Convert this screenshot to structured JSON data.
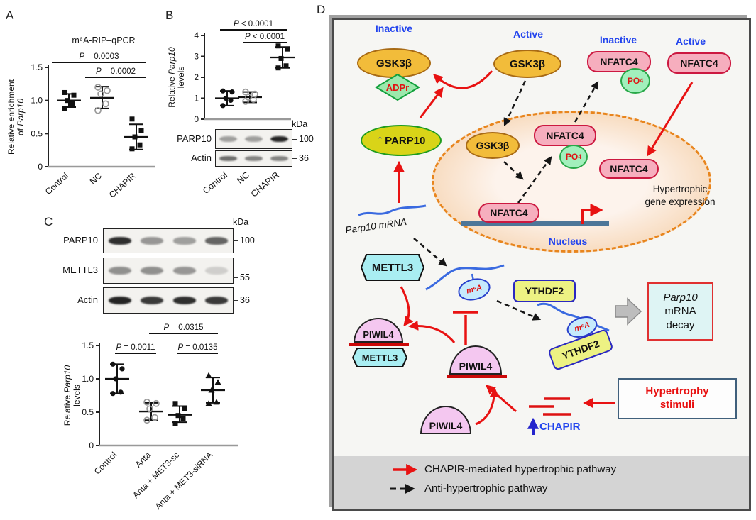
{
  "figure": {
    "panel_a": {
      "label": "A"
    },
    "panel_b": {
      "label": "B"
    },
    "panel_c": {
      "label": "C"
    },
    "panel_d": {
      "label": "D"
    }
  },
  "chart_data": [
    {
      "id": "A",
      "type": "scatter",
      "title": "m⁶A-RIP–qPCR",
      "ylabel_lines": [
        [
          {
            "t": "Relative enrichment"
          }
        ],
        [
          {
            "t": "of "
          },
          {
            "t": "Parp10",
            "i": true
          }
        ]
      ],
      "ylim": [
        0,
        1.5
      ],
      "yticks": [
        0,
        0.5,
        1.0,
        1.5
      ],
      "ytick_labels": [
        "0",
        "0.5",
        "1.0",
        "1.5"
      ],
      "groups": [
        {
          "label": "Control",
          "marker": "square",
          "values": [
            0.88,
            0.95,
            1.0,
            1.08,
            1.12
          ],
          "mean": 1.0,
          "err": [
            0.9,
            1.1
          ]
        },
        {
          "label": "NC",
          "marker": "circle-open",
          "values": [
            0.85,
            0.95,
            1.1,
            1.15,
            1.2
          ],
          "mean": 1.04,
          "err": [
            0.88,
            1.21
          ]
        },
        {
          "label": "CHAPIR",
          "marker": "square",
          "values": [
            0.27,
            0.33,
            0.45,
            0.55,
            0.72
          ],
          "mean": 0.45,
          "err": [
            0.26,
            0.64
          ]
        }
      ],
      "comparisons": [
        {
          "text": "P = 0.0003",
          "from": 0,
          "to": 2,
          "level": 0
        },
        {
          "text": "P = 0.0002",
          "from": 1,
          "to": 2,
          "level": 1
        }
      ]
    },
    {
      "id": "B",
      "type": "scatter",
      "title": "",
      "ylabel_lines": [
        [
          {
            "t": "Relative "
          },
          {
            "t": "Parp10",
            "i": true
          }
        ],
        [
          {
            "t": "levels"
          }
        ]
      ],
      "ylim": [
        0,
        4
      ],
      "yticks": [
        0,
        1,
        2,
        3,
        4
      ],
      "ytick_labels": [
        "0",
        "1",
        "2",
        "3",
        "4"
      ],
      "groups": [
        {
          "label": "Control",
          "marker": "circle",
          "values": [
            0.65,
            0.9,
            1.0,
            1.3,
            1.35
          ],
          "mean": 1.0,
          "err": [
            0.65,
            1.35
          ]
        },
        {
          "label": "NC",
          "marker": "circle-open",
          "values": [
            0.85,
            0.95,
            1.05,
            1.2,
            1.3
          ],
          "mean": 1.05,
          "err": [
            0.8,
            1.3
          ]
        },
        {
          "label": "CHAPIR",
          "marker": "square",
          "values": [
            2.45,
            2.55,
            2.9,
            3.35,
            3.5
          ],
          "mean": 2.95,
          "err": [
            2.45,
            3.45
          ]
        }
      ],
      "comparisons": [
        {
          "text": "P < 0.0001",
          "from": 0,
          "to": 2,
          "level": 0
        },
        {
          "text": "P < 0.0001",
          "from": 1,
          "to": 2,
          "level": 1
        }
      ]
    },
    {
      "id": "C",
      "type": "scatter",
      "title": "",
      "ylabel_lines": [
        [
          {
            "t": "Relative "
          },
          {
            "t": "Parp10",
            "i": true
          }
        ],
        [
          {
            "t": "levels"
          }
        ]
      ],
      "ylim": [
        0,
        1.5
      ],
      "yticks": [
        0,
        0.5,
        1.0,
        1.5
      ],
      "ytick_labels": [
        "0",
        "0.5",
        "1.0",
        "1.5"
      ],
      "groups": [
        {
          "label": "Control",
          "marker": "circle",
          "values": [
            0.78,
            0.8,
            1.0,
            1.15,
            1.22
          ],
          "mean": 1.0,
          "err": [
            0.78,
            1.22
          ]
        },
        {
          "label": "Anta",
          "marker": "circle-open",
          "values": [
            0.38,
            0.42,
            0.55,
            0.63,
            0.65
          ],
          "mean": 0.51,
          "err": [
            0.38,
            0.64
          ]
        },
        {
          "label": "Anta + MET3-sc",
          "marker": "square",
          "values": [
            0.33,
            0.4,
            0.45,
            0.55,
            0.63
          ],
          "mean": 0.46,
          "err": [
            0.35,
            0.59
          ]
        },
        {
          "label": "Anta + MET3-siRNA",
          "marker": "triangle",
          "values": [
            0.63,
            0.65,
            0.83,
            0.95,
            1.05
          ],
          "mean": 0.83,
          "err": [
            0.64,
            1.02
          ]
        }
      ],
      "comparisons": [
        {
          "text": "P = 0.0315",
          "from": 1,
          "to": 3,
          "level": 0
        },
        {
          "text": "P = 0.0011",
          "from": 0,
          "to": 1,
          "level": 1
        },
        {
          "text": "P = 0.0135",
          "from": 2,
          "to": 3,
          "level": 1
        }
      ]
    }
  ],
  "blots": {
    "b": {
      "kda_label": "kDa",
      "lanes": [
        "Control",
        "NC",
        "CHAPIR"
      ],
      "rows": [
        {
          "label": "PARP10",
          "marker": "100",
          "bands": [
            0.38,
            0.38,
            0.95
          ]
        },
        {
          "label": "Actin",
          "marker": "36",
          "bands": [
            0.6,
            0.5,
            0.5
          ]
        }
      ]
    },
    "c": {
      "kda_label": "kDa",
      "rows": [
        {
          "label": "PARP10",
          "marker": "100",
          "bands": [
            0.9,
            0.42,
            0.38,
            0.65
          ]
        },
        {
          "label": "METTL3",
          "marker": "55",
          "bands": [
            0.45,
            0.45,
            0.42,
            0.16
          ]
        },
        {
          "label": "Actin",
          "marker": "36",
          "bands": [
            0.95,
            0.85,
            0.9,
            0.85
          ]
        }
      ]
    }
  },
  "diagram": {
    "labels": {
      "inactive": "Inactive",
      "active": "Active",
      "gsk3b": "GSK3β",
      "adpr": "ADPr",
      "nfatc4": "NFATC4",
      "po4": "PO",
      "po4_sub": "4",
      "parp10": "PARP10",
      "up_arrow": "↑",
      "parp10_mrna": "Parp10 mRNA",
      "mettl3": "METTL3",
      "m6a": "m⁶A",
      "ythdf2": "YTHDF2",
      "piwil4": "PIWIL4",
      "nucleus": "Nucleus",
      "hyper1": "Hypertrophic",
      "hyper2": "gene expression",
      "decay1": "Parp10",
      "decay2": "mRNA",
      "decay3": "decay",
      "stim1": "Hypertrophy",
      "stim2": "stimuli",
      "chapir": "CHAPIR",
      "legend_red": "CHAPIR-mediated hypertrophic pathway",
      "legend_black": "Anti-hypertrophic pathway"
    }
  }
}
